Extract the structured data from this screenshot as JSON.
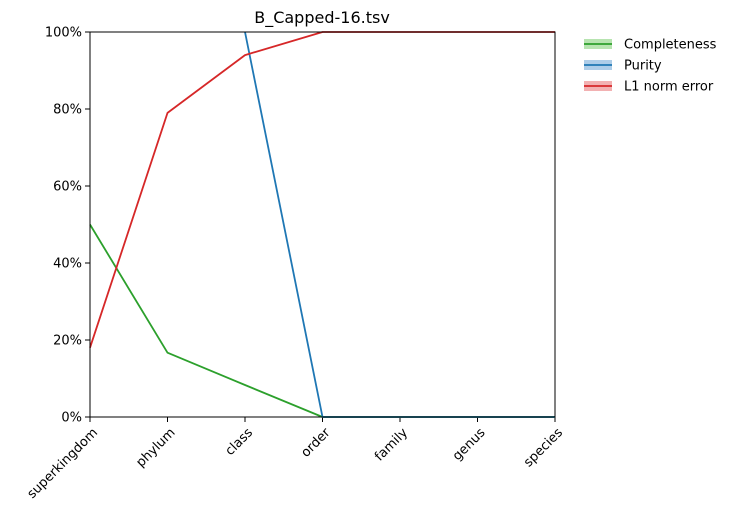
{
  "chart_data": {
    "type": "line",
    "title": "B_Capped-16.tsv",
    "categories": [
      "superkingdom",
      "phylum",
      "class",
      "order",
      "family",
      "genus",
      "species"
    ],
    "ylim": [
      0,
      100
    ],
    "yticks": [
      "0%",
      "20%",
      "40%",
      "60%",
      "80%",
      "100%"
    ],
    "ytick_values": [
      0,
      20,
      40,
      60,
      80,
      100
    ],
    "grid": false,
    "legend_position": "outside-top-right",
    "series": [
      {
        "name": "Completeness",
        "color": "#2ca02c",
        "band_color": "#b7e4b0",
        "values": [
          50,
          16.7,
          8.3,
          0,
          0,
          0,
          0
        ]
      },
      {
        "name": "Purity",
        "color": "#1f77b4",
        "band_color": "#aecde8",
        "values": [
          null,
          null,
          100,
          0,
          0,
          0,
          0
        ]
      },
      {
        "name": "L1 norm error",
        "color": "#d62728",
        "band_color": "#f2b1b2",
        "values": [
          18,
          79,
          94,
          100,
          100,
          100,
          100
        ]
      }
    ]
  }
}
